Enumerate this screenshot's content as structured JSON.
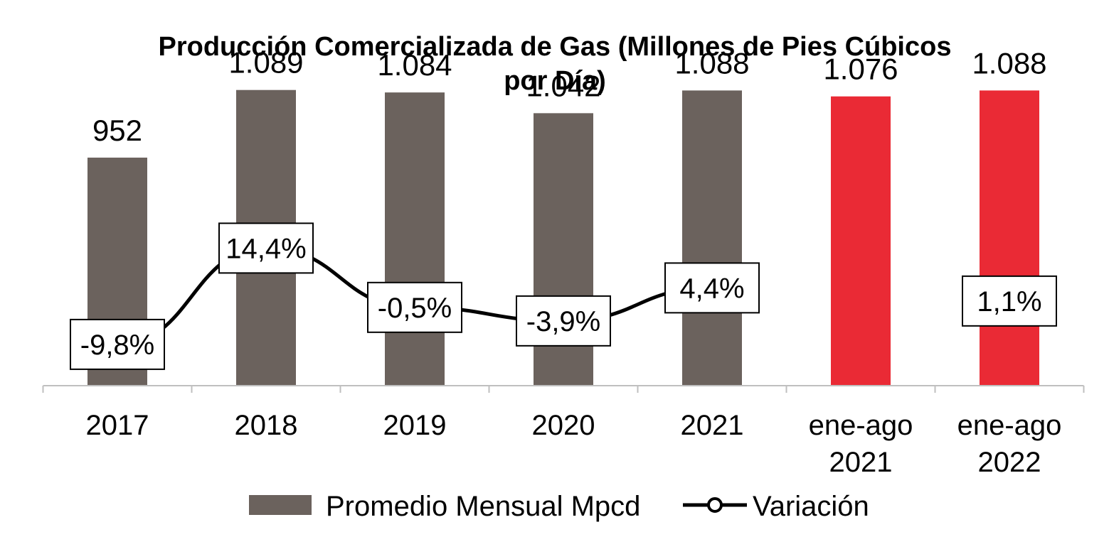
{
  "chart_data": {
    "type": "bar",
    "title": "Producción Comercializada de Gas (Millones de Pies Cúbicos por Día)",
    "title_lines": [
      "Producción Comercializada de Gas (Millones de Pies Cúbicos",
      "por Día)"
    ],
    "categories": [
      [
        "2017"
      ],
      [
        "2018"
      ],
      [
        "2019"
      ],
      [
        "2020"
      ],
      [
        "2021"
      ],
      [
        "ene-ago",
        "2021"
      ],
      [
        "ene-ago",
        "2022"
      ]
    ],
    "series": [
      {
        "name": "Promedio Mensual Mpcd",
        "kind": "bar",
        "values": [
          952,
          1089,
          1084,
          1042,
          1088,
          1076,
          1088
        ],
        "labels": [
          "952",
          "1.089",
          "1.084",
          "1.042",
          "1.088",
          "1.076",
          "1.088"
        ],
        "colors": [
          "#6b625d",
          "#6b625d",
          "#6b625d",
          "#6b625d",
          "#6b625d",
          "#ea2a35",
          "#ea2a35"
        ]
      },
      {
        "name": "Variación",
        "kind": "line",
        "values": [
          -9.8,
          14.4,
          -0.5,
          -3.9,
          4.4,
          null,
          1.1
        ],
        "labels": [
          "-9,8%",
          "14,4%",
          "-0,5%",
          "-3,9%",
          "4,4%",
          "",
          "1,1%"
        ],
        "color": "#000000"
      }
    ],
    "legend": {
      "position": "bottom",
      "items": [
        "Promedio Mensual Mpcd",
        "Variación"
      ]
    },
    "grid": false
  }
}
